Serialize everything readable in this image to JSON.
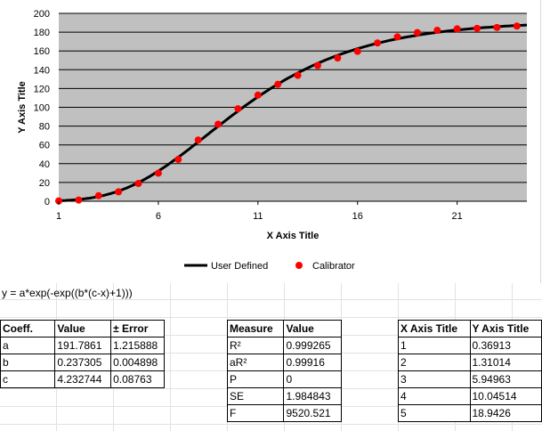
{
  "chart_data": {
    "type": "scatter",
    "xlabel": "X Axis Title",
    "ylabel": "Y Axis Title",
    "xlim": [
      1,
      24.5
    ],
    "ylim": [
      0,
      200
    ],
    "xticks": [
      1,
      6,
      11,
      16,
      21
    ],
    "yticks": [
      0,
      20,
      40,
      60,
      80,
      100,
      120,
      140,
      160,
      180,
      200
    ],
    "plot_background": "#c0c0c0",
    "grid": true,
    "legend_position": "bottom",
    "series": [
      {
        "name": "User Defined",
        "kind": "line",
        "color": "#000000",
        "model": {
          "a": 191.7861,
          "b": 0.237305,
          "c": 4.232744
        }
      },
      {
        "name": "Calibrator",
        "kind": "markers",
        "color": "#ff0000",
        "x": [
          1,
          2,
          3,
          4,
          5,
          6,
          7,
          8,
          9,
          10,
          11,
          12,
          13,
          14,
          15,
          16,
          17,
          18,
          19,
          20,
          21,
          22,
          23,
          24
        ],
        "y": [
          0.36913,
          1.31014,
          5.94963,
          10.04514,
          18.9426,
          29.9,
          44.5,
          65.2,
          82.0,
          98.5,
          113.0,
          124.5,
          134.0,
          144.5,
          152.5,
          159.5,
          168.5,
          175.0,
          179.5,
          182.0,
          183.5,
          184.0,
          185.0,
          186.5
        ]
      }
    ]
  },
  "sheet": {
    "equation": "y = a*exp(-exp((b*(c-x)+1)))",
    "coeff_table": {
      "headers": [
        "Coeff.",
        "Value",
        "± Error"
      ],
      "rows": [
        [
          "a",
          "191.7861",
          "1.215888"
        ],
        [
          "b",
          "0.237305",
          "0.004898"
        ],
        [
          "c",
          "4.232744",
          "0.08763"
        ]
      ]
    },
    "measure_table": {
      "headers": [
        "Measure",
        "Value"
      ],
      "rows": [
        [
          "R²",
          "0.999265"
        ],
        [
          "aR²",
          "0.99916"
        ],
        [
          "P",
          "0"
        ],
        [
          "SE",
          "1.984843"
        ],
        [
          "F",
          "9520.521"
        ]
      ]
    },
    "data_table": {
      "headers": [
        "X Axis Title",
        "Y Axis Title"
      ],
      "rows": [
        [
          "1",
          "0.36913"
        ],
        [
          "2",
          "1.31014"
        ],
        [
          "3",
          "5.94963"
        ],
        [
          "4",
          "10.04514"
        ],
        [
          "5",
          "18.9426"
        ]
      ]
    }
  }
}
